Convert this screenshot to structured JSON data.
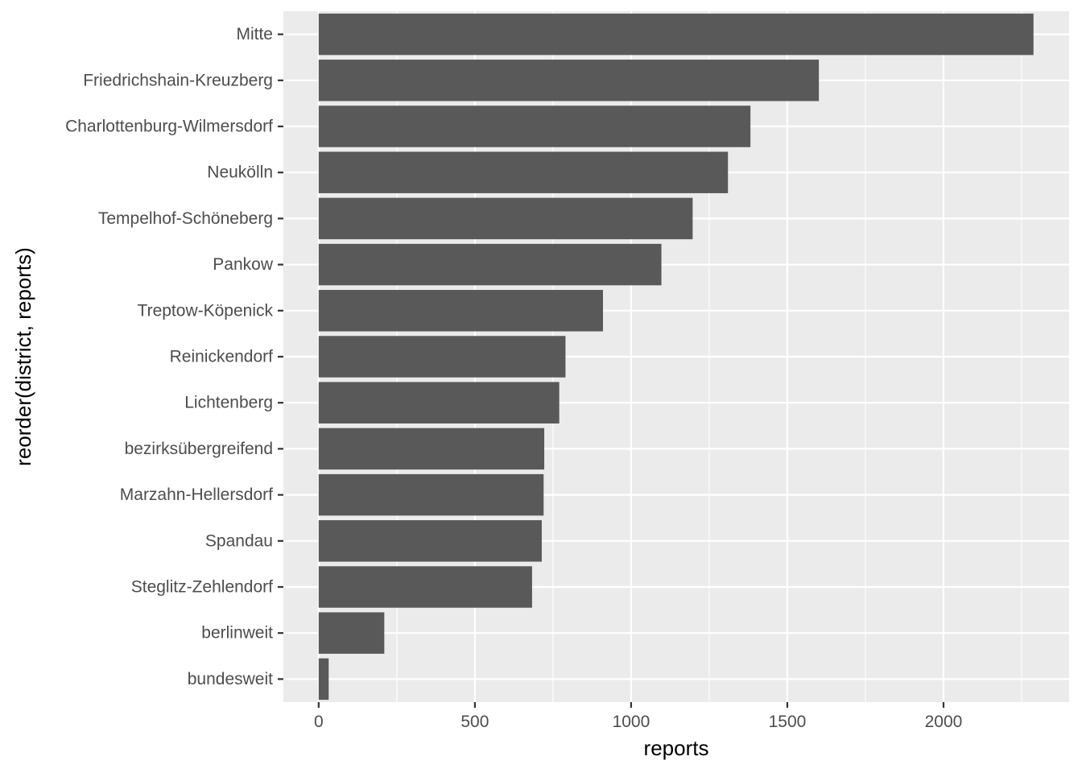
{
  "chart_data": {
    "type": "bar",
    "orientation": "horizontal",
    "categories": [
      "Mitte",
      "Friedrichshain-Kreuzberg",
      "Charlottenburg-Wilmersdorf",
      "Neukölln",
      "Tempelhof-Schöneberg",
      "Pankow",
      "Treptow-Köpenick",
      "Reinickendorf",
      "Lichtenberg",
      "bezirksübergreifend",
      "Marzahn-Hellersdorf",
      "Spandau",
      "Steglitz-Zehlendorf",
      "berlinweit",
      "bundesweit"
    ],
    "values": [
      2288,
      1601,
      1382,
      1310,
      1197,
      1097,
      910,
      790,
      770,
      722,
      720,
      714,
      683,
      210,
      32
    ],
    "title": "",
    "xlabel": "reports",
    "ylabel": "reorder(district, reports)",
    "xlim": [
      -113,
      2402
    ],
    "xticks": [
      0,
      500,
      1000,
      1500,
      2000
    ],
    "xtick_labels": [
      "0",
      "500",
      "1000",
      "1500",
      "2000"
    ],
    "x_minor_gridlines": [
      250,
      750,
      1250,
      1750,
      2250
    ],
    "grid": true,
    "legend": "none",
    "colors": {
      "bar": "#595959",
      "panel_background": "#ebebeb",
      "grid": "#ffffff",
      "tick_text": "#4d4d4d",
      "tick_mark": "#333333"
    }
  }
}
